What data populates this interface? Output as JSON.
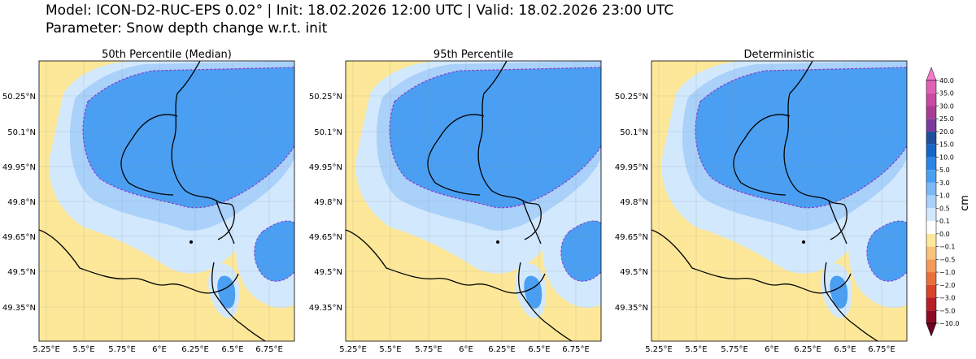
{
  "header": {
    "line1": "Model: ICON-D2-RUC-EPS 0.02° | Init: 18.02.2026 12:00 UTC | Valid: 18.02.2026 23:00 UTC",
    "line2": "Parameter: Snow depth change w.r.t. init"
  },
  "panels": [
    {
      "title": "50th Percentile (Median)"
    },
    {
      "title": "95th Percentile"
    },
    {
      "title": "Deterministic"
    }
  ],
  "x_ticks": [
    "5.25°E",
    "5.5°E",
    "5.75°E",
    "6°E",
    "6.25°E",
    "6.5°E",
    "6.75°E"
  ],
  "y_ticks": [
    "50.25°N",
    "50.1°N",
    "49.95°N",
    "49.8°N",
    "49.65°N",
    "49.5°N",
    "49.35°N"
  ],
  "colorbar": {
    "label": "cm",
    "levels": [
      "40.0",
      "35.0",
      "30.0",
      "25.0",
      "20.0",
      "15.0",
      "10.0",
      "5.0",
      "3.0",
      "1.0",
      "0.5",
      "0.1",
      "0.0",
      "−0.1",
      "−0.5",
      "−1.0",
      "−2.0",
      "−3.0",
      "−5.0",
      "−10.0"
    ],
    "colors": [
      "#f27ac8",
      "#e060b4",
      "#c84aa2",
      "#a83c94",
      "#7c3a9c",
      "#1f4e9c",
      "#1565c8",
      "#2a83e6",
      "#4a9ff2",
      "#7ab8f6",
      "#a9d1fa",
      "#d2e8fd",
      "#ffffff",
      "#fde89a",
      "#f9c27c",
      "#f39a58",
      "#e9703c",
      "#d8432a",
      "#b81e28",
      "#8c0a24",
      "#6a0420"
    ]
  }
}
